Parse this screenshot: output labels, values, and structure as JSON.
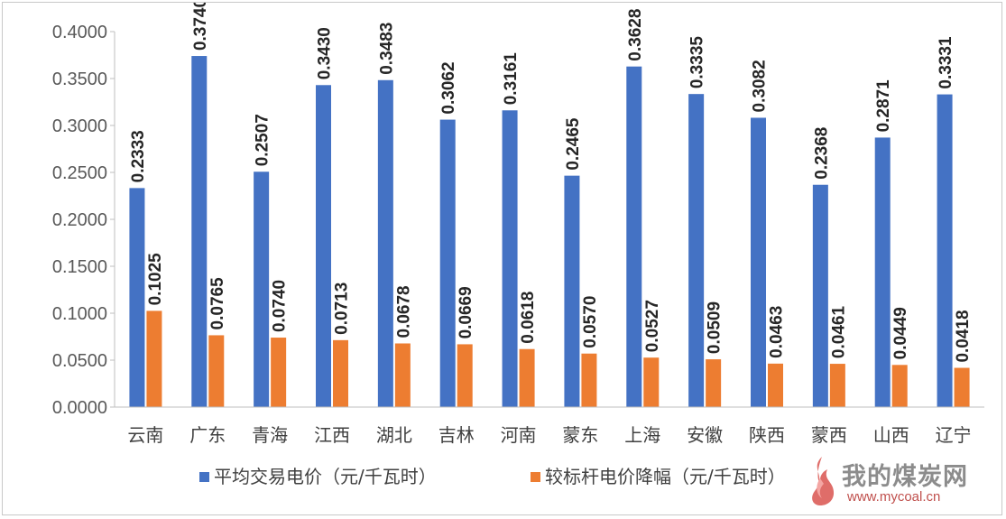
{
  "chart_data": {
    "type": "bar",
    "categories": [
      "云南",
      "广东",
      "青海",
      "江西",
      "湖北",
      "吉林",
      "河南",
      "蒙东",
      "上海",
      "安徽",
      "陕西",
      "蒙西",
      "山西",
      "辽宁"
    ],
    "series": [
      {
        "name": "平均交易电价（元/千瓦时）",
        "color": "#4472c4",
        "values": [
          0.2333,
          0.374,
          0.2507,
          0.343,
          0.3483,
          0.3062,
          0.3161,
          0.2465,
          0.3628,
          0.3335,
          0.3082,
          0.2368,
          0.2871,
          0.3331
        ],
        "labels": [
          "0.2333",
          "0.3740",
          "0.2507",
          "0.3430",
          "0.3483",
          "0.3062",
          "0.3161",
          "0.2465",
          "0.3628",
          "0.3335",
          "0.3082",
          "0.2368",
          "0.2871",
          "0.3331"
        ]
      },
      {
        "name": "较标杆电价降幅（元/千瓦时）",
        "color": "#ed7d31",
        "values": [
          0.1025,
          0.0765,
          0.074,
          0.0713,
          0.0678,
          0.0669,
          0.0618,
          0.057,
          0.0527,
          0.0509,
          0.0463,
          0.0461,
          0.0449,
          0.0418
        ],
        "labels": [
          "0.1025",
          "0.0765",
          "0.0740",
          "0.0713",
          "0.0678",
          "0.0669",
          "0.0618",
          "0.0570",
          "0.0527",
          "0.0509",
          "0.0463",
          "0.0461",
          "0.0449",
          "0.0418"
        ]
      }
    ],
    "ylim": [
      0,
      0.4
    ],
    "yticks": [
      0,
      0.05,
      0.1,
      0.15,
      0.2,
      0.25,
      0.3,
      0.35,
      0.4
    ],
    "ytick_labels": [
      "0.0000",
      "0.0500",
      "0.1000",
      "0.1500",
      "0.2000",
      "0.2500",
      "0.3000",
      "0.3500",
      "0.4000"
    ],
    "grid": false,
    "legend_position": "bottom"
  },
  "watermark": {
    "title": "我的煤炭网",
    "url": "www.mycoal.cn"
  }
}
